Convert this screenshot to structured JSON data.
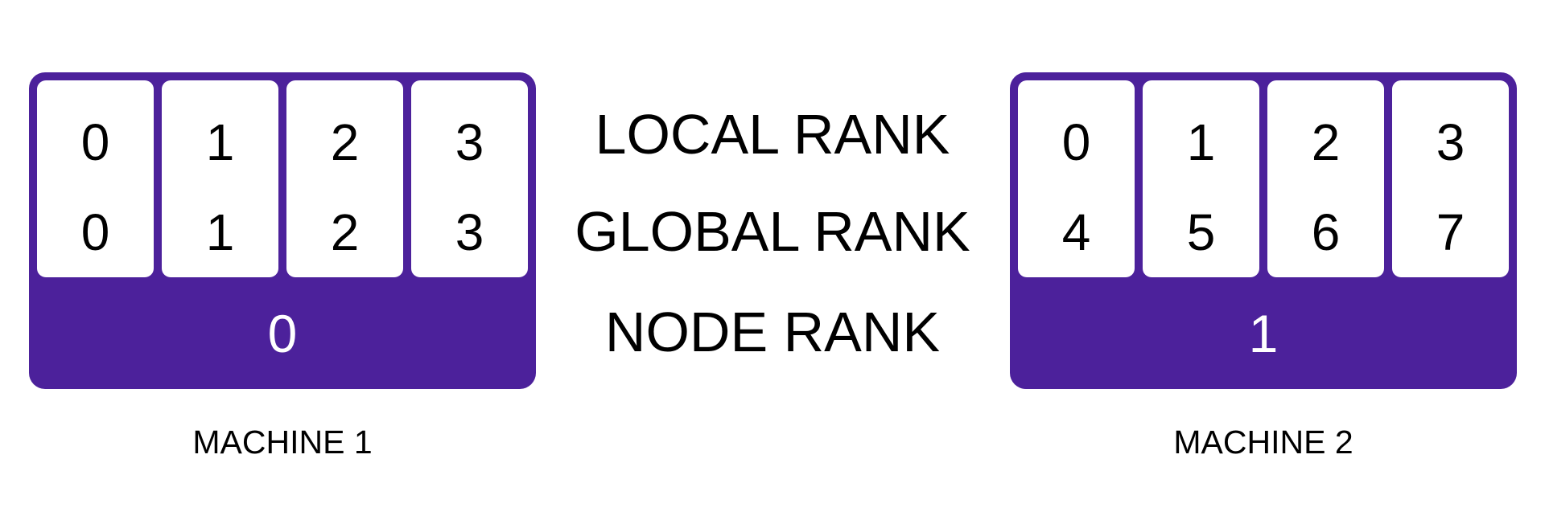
{
  "colors": {
    "machine_fill": "#4c219b",
    "gpu_fill": "#ffffff",
    "text": "#000000",
    "node_rank_text": "#ffffff"
  },
  "labels": {
    "local_rank": "LOCAL RANK",
    "global_rank": "GLOBAL RANK",
    "node_rank": "NODE RANK"
  },
  "machines": [
    {
      "caption": "MACHINE 1",
      "node_rank": "0",
      "gpus": [
        {
          "local_rank": "0",
          "global_rank": "0"
        },
        {
          "local_rank": "1",
          "global_rank": "1"
        },
        {
          "local_rank": "2",
          "global_rank": "2"
        },
        {
          "local_rank": "3",
          "global_rank": "3"
        }
      ]
    },
    {
      "caption": "MACHINE 2",
      "node_rank": "1",
      "gpus": [
        {
          "local_rank": "0",
          "global_rank": "4"
        },
        {
          "local_rank": "1",
          "global_rank": "5"
        },
        {
          "local_rank": "2",
          "global_rank": "6"
        },
        {
          "local_rank": "3",
          "global_rank": "7"
        }
      ]
    }
  ]
}
